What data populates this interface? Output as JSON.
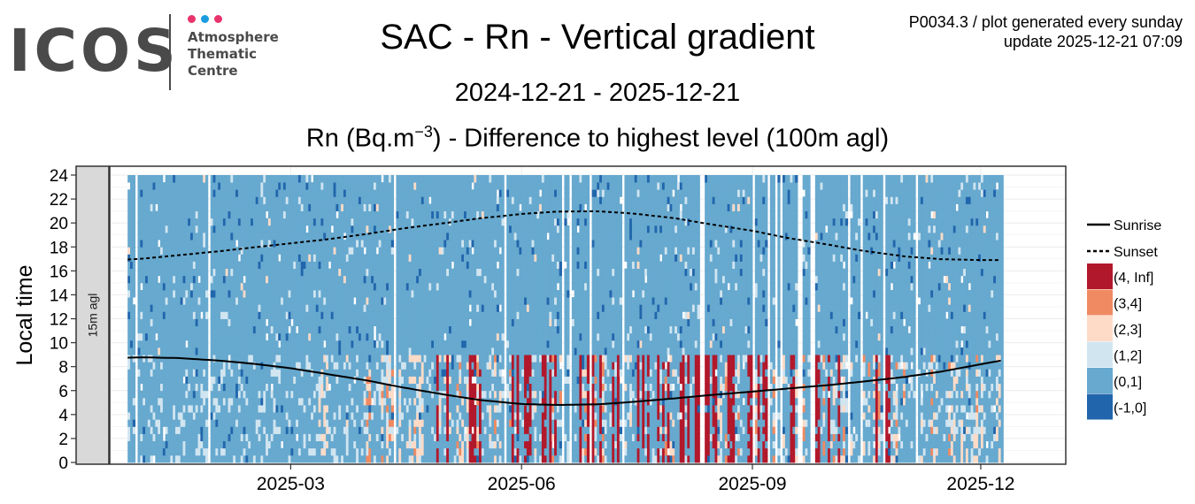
{
  "logo": {
    "brand": "ICOS",
    "sub_line1": "Atmosphere",
    "sub_line2": "Thematic",
    "sub_line3": "Centre",
    "dot_colors": [
      "#e8336d",
      "#1b9be0",
      "#e8336d"
    ]
  },
  "header": {
    "title": "SAC - Rn - Vertical gradient",
    "date_range": "2024-12-21 - 2025-12-21",
    "subtitle_pre": "Rn (Bq.m",
    "subtitle_sup": "−3",
    "subtitle_post": ") - Difference to highest level (100m agl)",
    "info_line1": "P0034.3 / plot generated every sunday",
    "info_line2": "update  2025-12-21 07:09"
  },
  "chart_data": {
    "type": "heatmap",
    "title": "SAC - Rn - Vertical gradient",
    "subtitle": "Rn (Bq.m-3) - Difference to highest level (100m agl)",
    "xlabel": "",
    "ylabel": "Local time",
    "facet_label": "15m agl",
    "x_range": [
      "2024-12-21",
      "2025-12-21"
    ],
    "x_ticks": [
      "2025-03",
      "2025-06",
      "2025-09",
      "2025-12"
    ],
    "ylim": [
      0,
      24
    ],
    "y_ticks": [
      0,
      2,
      4,
      6,
      8,
      10,
      12,
      14,
      16,
      18,
      20,
      22,
      24
    ],
    "grid": true,
    "legend_position": "right",
    "legend_lines": [
      "Sunrise",
      "Sunset"
    ],
    "classes": [
      {
        "label": "(4, Inf]",
        "color": "#b2182b"
      },
      {
        "label": "(3,4]",
        "color": "#ef8a62"
      },
      {
        "label": "(2,3]",
        "color": "#fddbc7"
      },
      {
        "label": "(1,2]",
        "color": "#d1e5f0"
      },
      {
        "label": "(0,1]",
        "color": "#67a9cf"
      },
      {
        "label": "(-1,0]",
        "color": "#2166ac"
      }
    ],
    "data_start": "2024-12-26",
    "data_end": "2025-12-09",
    "sunrise_curve": {
      "dates": [
        "2024-12-26",
        "2025-01-01",
        "2025-01-15",
        "2025-02-01",
        "2025-02-15",
        "2025-03-01",
        "2025-03-15",
        "2025-04-01",
        "2025-04-15",
        "2025-05-01",
        "2025-05-15",
        "2025-06-01",
        "2025-06-15",
        "2025-07-01",
        "2025-07-15",
        "2025-08-01",
        "2025-08-15",
        "2025-09-01",
        "2025-09-15",
        "2025-10-01",
        "2025-10-15",
        "2025-11-01",
        "2025-11-15",
        "2025-12-01",
        "2025-12-09"
      ],
      "hours": [
        8.75,
        8.78,
        8.72,
        8.5,
        8.22,
        7.87,
        7.4,
        6.82,
        6.25,
        5.68,
        5.22,
        4.88,
        4.8,
        4.85,
        5.05,
        5.35,
        5.62,
        5.92,
        6.17,
        6.45,
        6.75,
        7.15,
        7.58,
        8.2,
        8.5
      ]
    },
    "sunset_curve": {
      "dates": [
        "2024-12-26",
        "2025-01-01",
        "2025-01-15",
        "2025-02-01",
        "2025-02-15",
        "2025-03-01",
        "2025-03-15",
        "2025-04-01",
        "2025-04-15",
        "2025-05-01",
        "2025-05-15",
        "2025-06-01",
        "2025-06-15",
        "2025-07-01",
        "2025-07-15",
        "2025-08-01",
        "2025-08-15",
        "2025-09-01",
        "2025-09-15",
        "2025-10-01",
        "2025-10-15",
        "2025-11-01",
        "2025-11-15",
        "2025-12-01",
        "2025-12-09"
      ],
      "hours": [
        16.95,
        17.02,
        17.3,
        17.65,
        17.98,
        18.3,
        18.62,
        19.1,
        19.55,
        19.98,
        20.38,
        20.75,
        20.95,
        20.98,
        20.8,
        20.4,
        19.9,
        19.35,
        18.75,
        18.2,
        17.68,
        17.2,
        16.98,
        16.9,
        16.9
      ]
    },
    "cells": {
      "bin_hours": 0.6,
      "note": "Each column is one day; each cell covers a bin of local time. Class index refers to classes[] (0=(4,Inf] ... 5=(-1,0], -1 = missing).",
      "seed": 20251221,
      "missing_days_fraction": 0.07,
      "night_window": [
        0.0,
        8.8
      ],
      "day_window": [
        8.8,
        24.0
      ]
    }
  }
}
